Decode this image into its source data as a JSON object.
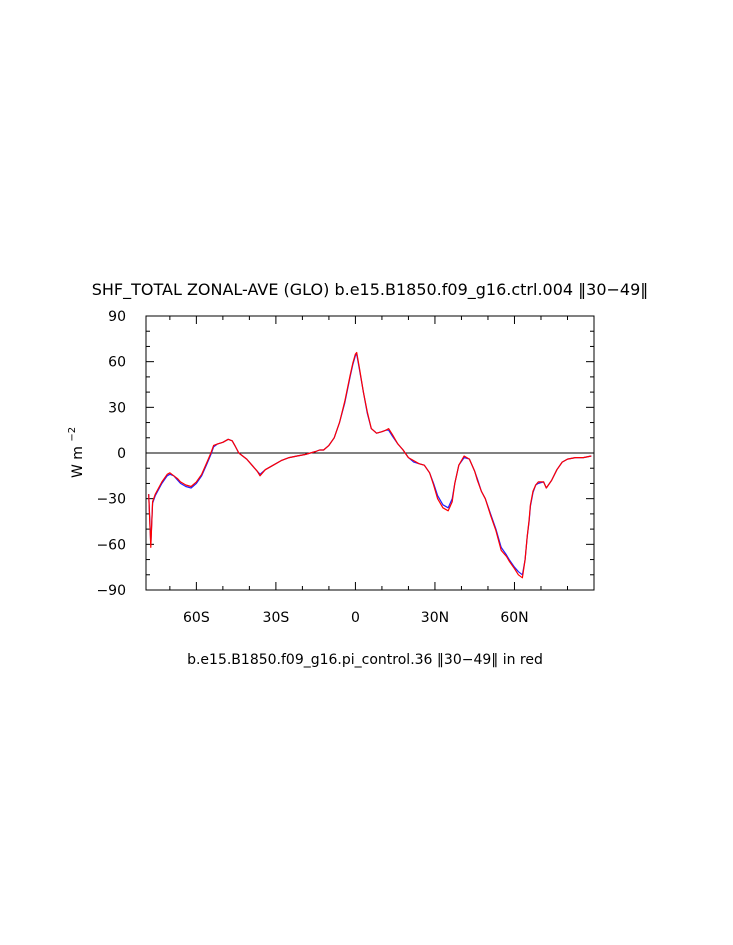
{
  "chart_data": {
    "type": "line",
    "title": "SHF_TOTAL ZONAL-AVE (GLO) b.e15.B1850.f09_g16.ctrl.004 [[30-49]]",
    "title_text": "SHF_TOTAL ZONAL-AVE (GLO) b.e15.B1850.f09_g16.ctrl.004 ‖30−49‖",
    "ylabel": "W m",
    "ylabel_sup": "−2",
    "footer": "b.e15.B1850.f09_g16.pi_control.36 ‖30−49‖ in red",
    "xlim": [
      -79,
      90
    ],
    "ylim": [
      -90,
      90
    ],
    "x_ticks": [
      {
        "value": -60,
        "label": "60S"
      },
      {
        "value": -30,
        "label": "30S"
      },
      {
        "value": 0,
        "label": "0"
      },
      {
        "value": 30,
        "label": "30N"
      },
      {
        "value": 60,
        "label": "60N"
      }
    ],
    "y_ticks": [
      {
        "value": 90,
        "label": "90"
      },
      {
        "value": 60,
        "label": "60"
      },
      {
        "value": 30,
        "label": "30"
      },
      {
        "value": 0,
        "label": "0"
      },
      {
        "value": -30,
        "label": "−30"
      },
      {
        "value": -60,
        "label": "−60"
      },
      {
        "value": -90,
        "label": "−90"
      }
    ],
    "zero_line": true,
    "grid": false,
    "series": [
      {
        "color": "#2020ff",
        "x": [
          -78,
          -77.2,
          -76.5,
          -75.5,
          -73,
          -71,
          -70,
          -68.5,
          -67,
          -66,
          -64,
          -62,
          -60,
          -58,
          -56,
          -54.5,
          -53.5,
          -52,
          -50,
          -48,
          -46.5,
          -45.5,
          -44,
          -41,
          -39,
          -37,
          -36,
          -34,
          -31,
          -28,
          -25,
          -22,
          -19,
          -17,
          -15,
          -13.5,
          -12,
          -10,
          -8,
          -6,
          -4,
          -2,
          -1,
          0,
          0.5,
          1.5,
          3,
          4.5,
          6,
          8,
          10,
          11.5,
          12.5,
          14,
          16,
          18,
          20,
          22,
          24,
          26,
          28,
          29.5,
          31,
          33,
          35,
          36.5,
          37.5,
          39,
          41,
          43,
          45,
          46,
          47.5,
          49,
          51,
          53,
          55,
          57,
          58,
          60,
          61.5,
          63,
          64,
          64.8,
          65.5,
          66,
          67,
          68,
          69,
          71,
          72,
          74,
          76,
          78,
          80,
          83,
          86,
          89
        ],
        "y": [
          -27,
          -60,
          -33,
          -28,
          -20,
          -15,
          -14,
          -15,
          -18,
          -20,
          -22,
          -23,
          -20,
          -15,
          -7,
          -1,
          4,
          6,
          7,
          9,
          8,
          5,
          0,
          -4,
          -8,
          -12,
          -14,
          -11,
          -8,
          -5,
          -3,
          -2,
          -1,
          0,
          1,
          2,
          2,
          5,
          10,
          20,
          33,
          50,
          58,
          64,
          65,
          55,
          40,
          26,
          16,
          13,
          14,
          15,
          15,
          11,
          6,
          2,
          -3,
          -6,
          -7,
          -8,
          -13,
          -20,
          -28,
          -34,
          -36,
          -30,
          -20,
          -8,
          -3,
          -4,
          -12,
          -17,
          -25,
          -30,
          -40,
          -50,
          -62,
          -67,
          -70,
          -75,
          -78,
          -80,
          -70,
          -55,
          -45,
          -35,
          -26,
          -21,
          -20,
          -19,
          -23,
          -18,
          -11,
          -6,
          -4,
          -3,
          -3,
          -2
        ]
      },
      {
        "color": "#ff0000",
        "x": [
          -78,
          -77.2,
          -76.5,
          -75.5,
          -73,
          -71,
          -70,
          -68.5,
          -67,
          -66,
          -64,
          -62,
          -60,
          -58,
          -56,
          -54.5,
          -53.5,
          -52,
          -50,
          -48,
          -46.5,
          -45.5,
          -44,
          -41,
          -39,
          -37,
          -36,
          -34,
          -31,
          -28,
          -25,
          -22,
          -19,
          -17,
          -15,
          -13.5,
          -12,
          -10,
          -8,
          -6,
          -4,
          -2,
          -1,
          0,
          0.5,
          1.5,
          3,
          4.5,
          6,
          8,
          10,
          11.5,
          12.5,
          14,
          16,
          18,
          20,
          22,
          24,
          26,
          28,
          29.5,
          31,
          33,
          35,
          36.5,
          37.5,
          39,
          41,
          43,
          45,
          46,
          47.5,
          49,
          51,
          53,
          55,
          57,
          58,
          60,
          61.5,
          63,
          64,
          64.8,
          65.5,
          66,
          67,
          68,
          69,
          71,
          72,
          74,
          76,
          78,
          80,
          83,
          86,
          89
        ],
        "y": [
          -27,
          -62,
          -32,
          -27,
          -19,
          -14,
          -13,
          -15,
          -17,
          -19,
          -21,
          -22,
          -19,
          -14,
          -6,
          0,
          5,
          6,
          7,
          9,
          8,
          5,
          0,
          -4,
          -8,
          -12,
          -15,
          -11,
          -8,
          -5,
          -3,
          -2,
          -1,
          0,
          1,
          2,
          2,
          5,
          10,
          20,
          34,
          51,
          59,
          65,
          66,
          56,
          40,
          27,
          16,
          13,
          14,
          15,
          16,
          12,
          6,
          2,
          -3,
          -5,
          -7,
          -8,
          -13,
          -21,
          -30,
          -36,
          -38,
          -32,
          -20,
          -8,
          -2,
          -4,
          -12,
          -18,
          -25,
          -30,
          -41,
          -51,
          -64,
          -68,
          -71,
          -76,
          -80,
          -82,
          -70,
          -55,
          -44,
          -34,
          -25,
          -21,
          -19,
          -19,
          -23,
          -18,
          -11,
          -6,
          -4,
          -3,
          -3,
          -2
        ]
      }
    ]
  }
}
